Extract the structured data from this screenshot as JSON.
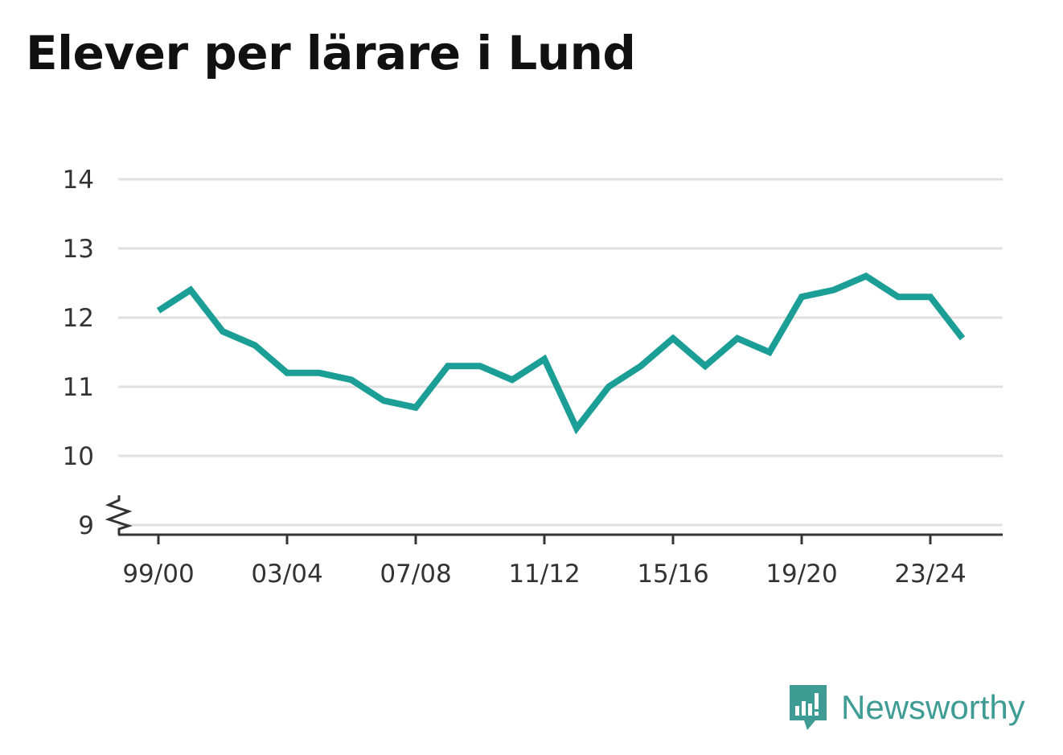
{
  "title": "Elever per lärare i Lund",
  "brand": {
    "name": "Newsworthy",
    "icon": "newsworthy-logo-icon",
    "color": "#3f9c95"
  },
  "chart_data": {
    "type": "line",
    "title": "Elever per lärare i Lund",
    "xlabel": "",
    "ylabel": "",
    "x": [
      "99/00",
      "00/01",
      "01/02",
      "02/03",
      "03/04",
      "04/05",
      "05/06",
      "06/07",
      "07/08",
      "08/09",
      "09/10",
      "10/11",
      "11/12",
      "12/13",
      "13/14",
      "14/15",
      "15/16",
      "16/17",
      "17/18",
      "18/19",
      "19/20",
      "20/21",
      "21/22",
      "22/23",
      "23/24",
      "24/25"
    ],
    "series": [
      {
        "color": "#1a9e96",
        "values": [
          12.1,
          12.4,
          11.8,
          11.6,
          11.2,
          11.2,
          11.1,
          10.8,
          10.7,
          11.3,
          11.3,
          11.1,
          11.4,
          10.4,
          11.0,
          11.3,
          11.7,
          11.3,
          11.7,
          11.5,
          12.3,
          12.4,
          12.6,
          12.3,
          12.3,
          11.7
        ]
      }
    ],
    "xticks": [
      "99/00",
      "03/04",
      "07/08",
      "11/12",
      "15/16",
      "19/20",
      "23/24"
    ],
    "yticks": [
      9,
      10,
      11,
      12,
      13,
      14
    ],
    "ylim": [
      9,
      14
    ],
    "y_axis_break": true,
    "grid": true,
    "colors": {
      "line": "#1a9e96",
      "grid": "#e0e0e0",
      "axis": "#333333"
    }
  }
}
